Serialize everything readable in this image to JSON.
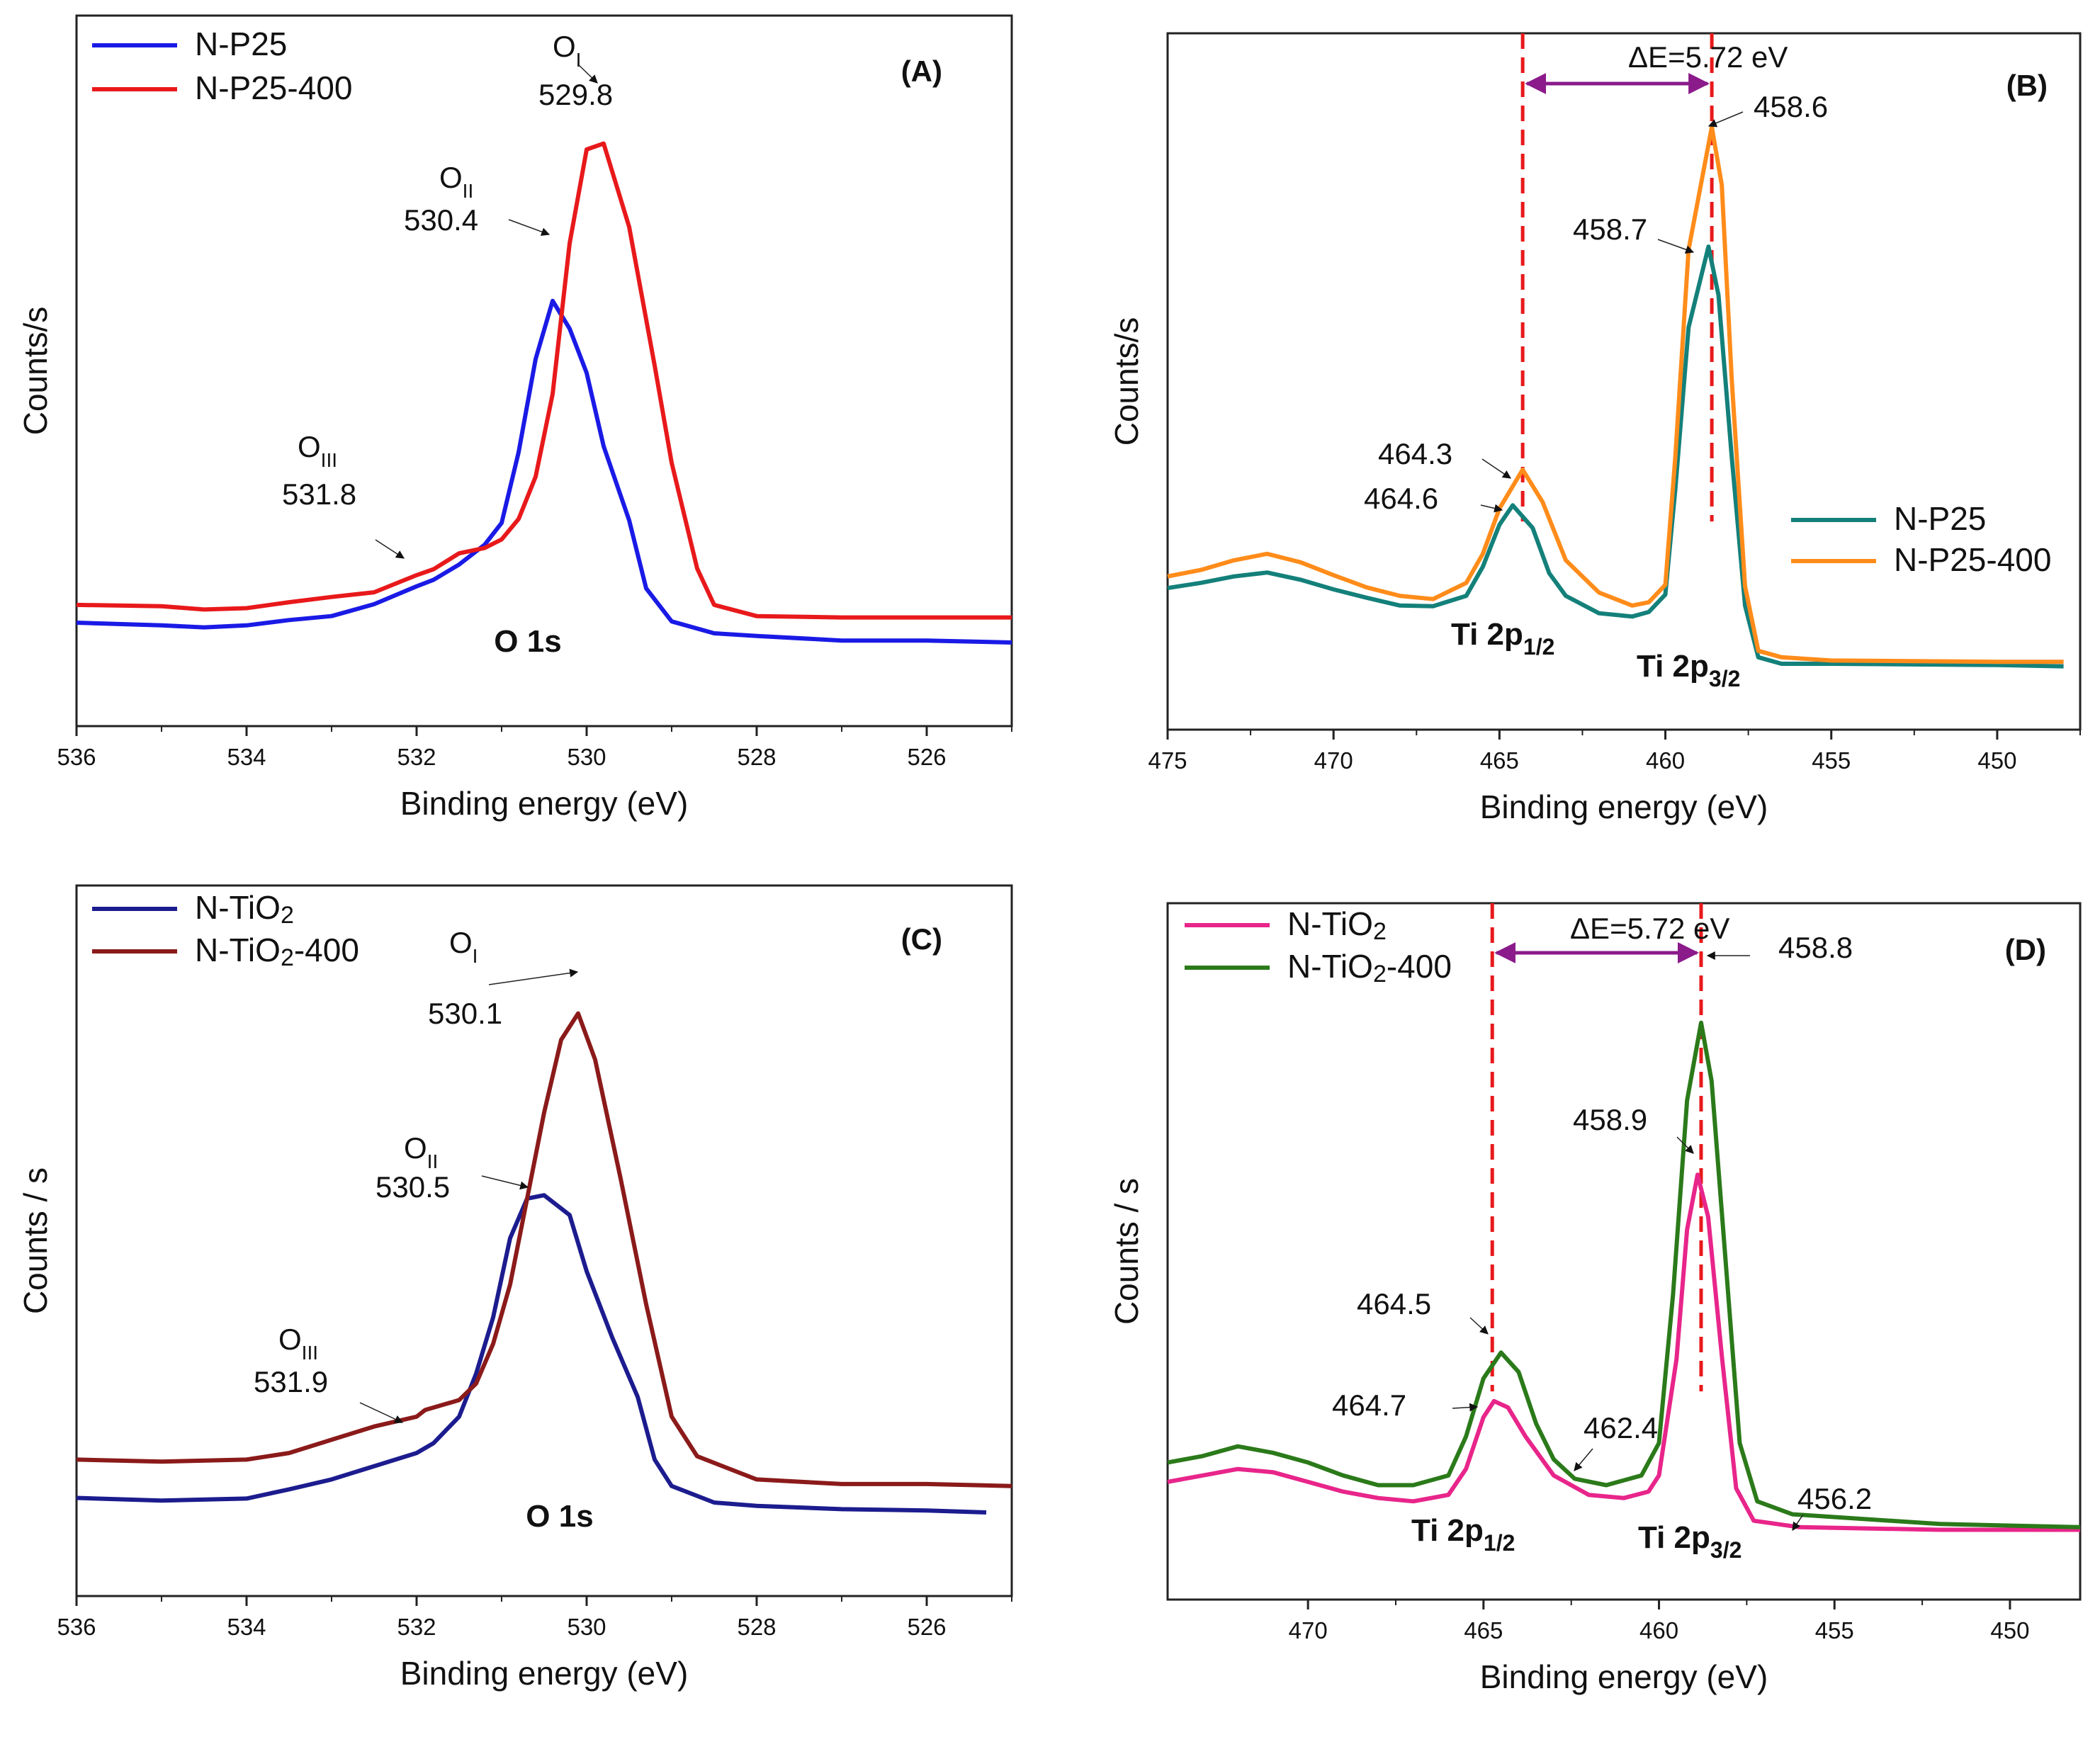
{
  "chart_data": [
    {
      "panel": "(A)",
      "type": "line",
      "title": "",
      "xlabel": "Binding energy (eV)",
      "ylabel": "Counts/s",
      "xlim": [
        536,
        525
      ],
      "ylim": [
        0,
        100
      ],
      "xticks": [
        536,
        534,
        532,
        530,
        528,
        526
      ],
      "legend": "top-left",
      "series": [
        {
          "name": "N-P25",
          "color": "#1a1ae6",
          "points": [
            [
              536,
              13.5
            ],
            [
              535,
              13.1
            ],
            [
              534.5,
              12.8
            ],
            [
              534,
              13.1
            ],
            [
              533.5,
              13.9
            ],
            [
              533,
              14.5
            ],
            [
              532.5,
              16.3
            ],
            [
              532,
              19.0
            ],
            [
              531.8,
              20.0
            ],
            [
              531.5,
              22.3
            ],
            [
              531.2,
              25.3
            ],
            [
              531,
              28.6
            ],
            [
              530.8,
              39.3
            ],
            [
              530.6,
              53.4
            ],
            [
              530.4,
              62.2
            ],
            [
              530.2,
              58.0
            ],
            [
              530,
              51.3
            ],
            [
              529.8,
              40.2
            ],
            [
              529.5,
              29.0
            ],
            [
              529.3,
              18.7
            ],
            [
              529,
              13.7
            ],
            [
              528.5,
              11.9
            ],
            [
              528,
              11.5
            ],
            [
              527,
              10.8
            ],
            [
              526,
              10.8
            ],
            [
              525,
              10.5
            ]
          ]
        },
        {
          "name": "N-P25-400",
          "color": "#e8191b",
          "points": [
            [
              536,
              16.2
            ],
            [
              535,
              16.0
            ],
            [
              534.5,
              15.5
            ],
            [
              534,
              15.7
            ],
            [
              533.5,
              16.6
            ],
            [
              533,
              17.4
            ],
            [
              532.5,
              18.1
            ],
            [
              532,
              20.7
            ],
            [
              531.8,
              21.6
            ],
            [
              531.5,
              24.0
            ],
            [
              531.2,
              24.8
            ],
            [
              531,
              26.1
            ],
            [
              530.8,
              29.2
            ],
            [
              530.6,
              35.6
            ],
            [
              530.4,
              48.1
            ],
            [
              530.2,
              70.9
            ],
            [
              530,
              85.1
            ],
            [
              529.8,
              86.0
            ],
            [
              529.5,
              73.4
            ],
            [
              529.2,
              52.4
            ],
            [
              529,
              37.7
            ],
            [
              528.7,
              21.7
            ],
            [
              528.5,
              16.2
            ],
            [
              528,
              14.5
            ],
            [
              527,
              14.3
            ],
            [
              526,
              14.3
            ],
            [
              525,
              14.3
            ]
          ]
        }
      ],
      "annotations": [
        {
          "label": "O",
          "sub": "I",
          "value": "529.8",
          "x": 529.8
        },
        {
          "label": "O",
          "sub": "II",
          "value": "530.4",
          "x": 530.4
        },
        {
          "label": "O",
          "sub": "III",
          "value": "531.8",
          "x": 531.8
        }
      ],
      "text_label": "O 1s"
    },
    {
      "panel": "(B)",
      "type": "line",
      "title": "",
      "xlabel": "Binding energy (eV)",
      "ylabel": "Counts/s",
      "xlim": [
        475,
        447.5
      ],
      "ylim": [
        0,
        100
      ],
      "xticks": [
        475,
        470,
        465,
        460,
        455,
        450
      ],
      "legend": "middle-right",
      "series": [
        {
          "name": "N-P25",
          "color": "#14807a",
          "points": [
            [
              475,
              19.7
            ],
            [
              474,
              20.5
            ],
            [
              473,
              21.5
            ],
            [
              472,
              22.1
            ],
            [
              471,
              21.0
            ],
            [
              470,
              19.5
            ],
            [
              469,
              18.2
            ],
            [
              468,
              17.0
            ],
            [
              467,
              16.9
            ],
            [
              466,
              18.5
            ],
            [
              465.5,
              23.0
            ],
            [
              465,
              29.5
            ],
            [
              464.6,
              32.5
            ],
            [
              464,
              29.0
            ],
            [
              463.5,
              22.0
            ],
            [
              463,
              18.5
            ],
            [
              462,
              15.8
            ],
            [
              461,
              15.3
            ],
            [
              460.5,
              16.0
            ],
            [
              460,
              18.7
            ],
            [
              459.7,
              35.0
            ],
            [
              459.3,
              60.0
            ],
            [
              458.7,
              72.5
            ],
            [
              458.4,
              65.0
            ],
            [
              458,
              40.0
            ],
            [
              457.6,
              17.0
            ],
            [
              457.2,
              9.0
            ],
            [
              456.5,
              8.0
            ],
            [
              455,
              8.0
            ],
            [
              450,
              7.8
            ],
            [
              448,
              7.6
            ]
          ]
        },
        {
          "name": "N-P25-400",
          "color": "#ff8c1a",
          "points": [
            [
              475,
              21.5
            ],
            [
              474,
              22.5
            ],
            [
              473,
              24.0
            ],
            [
              472,
              25.0
            ],
            [
              471,
              23.7
            ],
            [
              470,
              21.7
            ],
            [
              469,
              19.8
            ],
            [
              468,
              18.5
            ],
            [
              467,
              18.0
            ],
            [
              466,
              20.5
            ],
            [
              465.5,
              25.0
            ],
            [
              465,
              32.0
            ],
            [
              464.3,
              38.0
            ],
            [
              463.7,
              33.0
            ],
            [
              463,
              24.0
            ],
            [
              462,
              19.0
            ],
            [
              461,
              17.0
            ],
            [
              460.5,
              17.5
            ],
            [
              460,
              20.2
            ],
            [
              459.7,
              40.0
            ],
            [
              459.3,
              72.0
            ],
            [
              458.6,
              91.0
            ],
            [
              458.3,
              82.0
            ],
            [
              458,
              52.0
            ],
            [
              457.6,
              20.0
            ],
            [
              457.2,
              10.0
            ],
            [
              456.5,
              9.0
            ],
            [
              455,
              8.5
            ],
            [
              450,
              8.3
            ],
            [
              448,
              8.3
            ]
          ]
        }
      ],
      "annotations": [
        {
          "value": "458.6",
          "x": 458.6
        },
        {
          "value": "458.7",
          "x": 458.7
        },
        {
          "value": "464.3",
          "x": 464.3
        },
        {
          "value": "464.6",
          "x": 464.6
        }
      ],
      "delta_label": "ΔE=5.72 eV",
      "peak_labels": [
        {
          "main": "Ti 2p",
          "sub": "1/2"
        },
        {
          "main": "Ti 2p",
          "sub": "3/2"
        }
      ]
    },
    {
      "panel": "(C)",
      "type": "line",
      "title": "",
      "xlabel": "Binding energy (eV)",
      "ylabel": "Counts / s",
      "xlim": [
        536,
        525
      ],
      "ylim": [
        0,
        100
      ],
      "xticks": [
        536,
        534,
        532,
        530,
        528,
        526
      ],
      "legend": "top-left",
      "series": [
        {
          "name": "N-TiO",
          "name_sub": "2",
          "color": "#1c1c8f",
          "points": [
            [
              536,
              12.7
            ],
            [
              535,
              12.3
            ],
            [
              534,
              12.6
            ],
            [
              533.5,
              14.0
            ],
            [
              533,
              15.5
            ],
            [
              532.5,
              17.5
            ],
            [
              532,
              19.5
            ],
            [
              531.8,
              21.0
            ],
            [
              531.5,
              25.0
            ],
            [
              531.3,
              31.5
            ],
            [
              531.1,
              40.0
            ],
            [
              530.9,
              52.0
            ],
            [
              530.7,
              58.0
            ],
            [
              530.5,
              58.5
            ],
            [
              530.2,
              55.5
            ],
            [
              530,
              47.0
            ],
            [
              529.7,
              37.0
            ],
            [
              529.4,
              28.0
            ],
            [
              529.2,
              18.5
            ],
            [
              529,
              14.5
            ],
            [
              528.5,
              12.0
            ],
            [
              528,
              11.5
            ],
            [
              527,
              11.0
            ],
            [
              526,
              10.8
            ],
            [
              525.3,
              10.5
            ]
          ]
        },
        {
          "name": "N-TiO",
          "name_sub": "2",
          "name_suffix": "-400",
          "color": "#8b1a1a",
          "points": [
            [
              536,
              18.5
            ],
            [
              535,
              18.2
            ],
            [
              534,
              18.5
            ],
            [
              533.5,
              19.5
            ],
            [
              533,
              21.5
            ],
            [
              532.5,
              23.5
            ],
            [
              532,
              25.0
            ],
            [
              531.9,
              26.0
            ],
            [
              531.5,
              27.5
            ],
            [
              531.3,
              30.0
            ],
            [
              531.1,
              36.0
            ],
            [
              530.9,
              45.0
            ],
            [
              530.7,
              58.0
            ],
            [
              530.5,
              71.0
            ],
            [
              530.3,
              82.0
            ],
            [
              530.1,
              86.0
            ],
            [
              529.9,
              79.0
            ],
            [
              529.6,
              61.0
            ],
            [
              529.3,
              42.0
            ],
            [
              529,
              25.0
            ],
            [
              528.7,
              19.0
            ],
            [
              528,
              15.5
            ],
            [
              527,
              14.8
            ],
            [
              526,
              14.8
            ],
            [
              525,
              14.5
            ]
          ]
        }
      ],
      "annotations": [
        {
          "label": "O",
          "sub": "I",
          "value": "530.1",
          "x": 530.1
        },
        {
          "label": "O",
          "sub": "II",
          "value": "530.5",
          "x": 530.5
        },
        {
          "label": "O",
          "sub": "III",
          "value": "531.9",
          "x": 531.9
        }
      ],
      "text_label": "O 1s"
    },
    {
      "panel": "(D)",
      "type": "line",
      "title": "",
      "xlabel": "Binding energy (eV)",
      "ylabel": "Counts / s",
      "xlim": [
        474,
        448
      ],
      "ylim": [
        0,
        100
      ],
      "xticks": [
        470,
        465,
        460,
        455,
        450
      ],
      "legend": "top-left",
      "series": [
        {
          "name": "N-TiO",
          "name_sub": "2",
          "color": "#e8258a",
          "points": [
            [
              474,
              16.0
            ],
            [
              473,
              17.0
            ],
            [
              472,
              18.0
            ],
            [
              471,
              17.5
            ],
            [
              470,
              16.0
            ],
            [
              469,
              14.5
            ],
            [
              468,
              13.5
            ],
            [
              467,
              13.0
            ],
            [
              466,
              14.0
            ],
            [
              465.5,
              18.0
            ],
            [
              465,
              26.0
            ],
            [
              464.7,
              28.5
            ],
            [
              464.3,
              27.5
            ],
            [
              463.8,
              23.0
            ],
            [
              463,
              17.0
            ],
            [
              462,
              14.0
            ],
            [
              461,
              13.5
            ],
            [
              460.3,
              14.5
            ],
            [
              460,
              17.0
            ],
            [
              459.5,
              35.0
            ],
            [
              459.2,
              55.0
            ],
            [
              458.9,
              63.5
            ],
            [
              458.6,
              57.0
            ],
            [
              458.2,
              35.0
            ],
            [
              457.8,
              15.0
            ],
            [
              457.3,
              10.0
            ],
            [
              456,
              9.0
            ],
            [
              452,
              8.6
            ],
            [
              448,
              8.6
            ]
          ]
        },
        {
          "name": "N-TiO",
          "name_sub": "2",
          "name_suffix": "-400",
          "color": "#2b7a1a",
          "points": [
            [
              474,
              19.0
            ],
            [
              473,
              20.0
            ],
            [
              472,
              21.5
            ],
            [
              471,
              20.5
            ],
            [
              470,
              19.0
            ],
            [
              469,
              17.0
            ],
            [
              468,
              15.5
            ],
            [
              467,
              15.5
            ],
            [
              466,
              17.0
            ],
            [
              465.5,
              23.0
            ],
            [
              465,
              32.0
            ],
            [
              464.5,
              36.0
            ],
            [
              464,
              33.0
            ],
            [
              463.5,
              25.0
            ],
            [
              463,
              19.5
            ],
            [
              462.4,
              16.5
            ],
            [
              461.5,
              15.5
            ],
            [
              460.5,
              17.0
            ],
            [
              460,
              22.0
            ],
            [
              459.6,
              45.0
            ],
            [
              459.2,
              75.0
            ],
            [
              458.8,
              87.0
            ],
            [
              458.5,
              78.0
            ],
            [
              458.1,
              50.0
            ],
            [
              457.7,
              22.0
            ],
            [
              457.2,
              13.0
            ],
            [
              456.2,
              11.0
            ],
            [
              452,
              9.5
            ],
            [
              448,
              9.0
            ]
          ]
        }
      ],
      "annotations": [
        {
          "value": "458.8",
          "x": 458.8
        },
        {
          "value": "458.9",
          "x": 458.9
        },
        {
          "value": "464.5",
          "x": 464.5
        },
        {
          "value": "464.7",
          "x": 464.7
        },
        {
          "value": "462.4",
          "x": 462.4
        },
        {
          "value": "456.2",
          "x": 456.2
        }
      ],
      "delta_label": "ΔE=5.72 eV",
      "peak_labels": [
        {
          "main": "Ti 2p",
          "sub": "1/2"
        },
        {
          "main": "Ti 2p",
          "sub": "3/2"
        }
      ]
    }
  ]
}
